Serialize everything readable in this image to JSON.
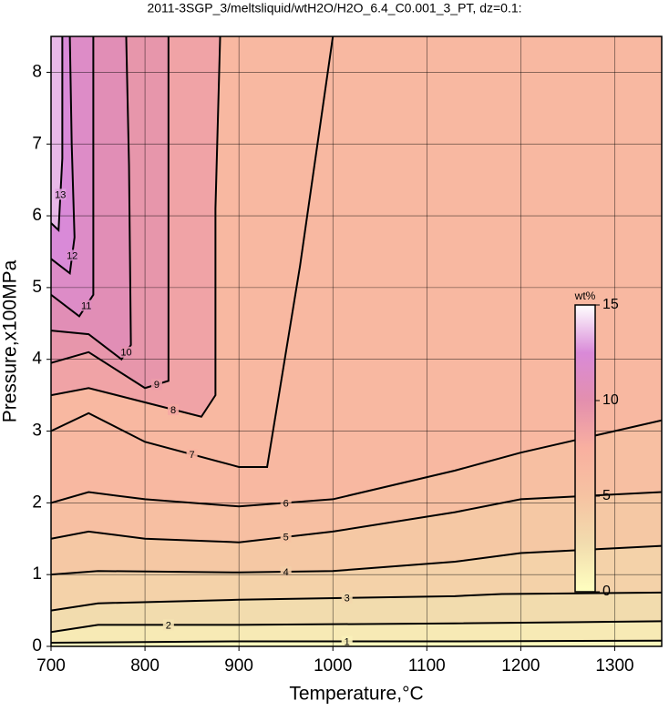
{
  "chart_data": {
    "type": "contour",
    "title": "2011-3SGP_3/meltsliquid/wtH2O/H2O_6.4_C0.001_3_PT, dz=0.1:",
    "xlabel": "Temperature,°C",
    "ylabel": "Pressure,x100MPa",
    "xlim": [
      700,
      1350
    ],
    "xticks": [
      700,
      800,
      900,
      1000,
      1100,
      1200,
      1300
    ],
    "ylim": [
      0,
      8.5
    ],
    "yticks": [
      0,
      1,
      2,
      3,
      4,
      5,
      6,
      7,
      8
    ],
    "grid": true,
    "line_color": "#000000",
    "contours": [
      {
        "level": 1,
        "x": [
          700,
          900,
          1130,
          1350
        ],
        "y": [
          0.05,
          0.07,
          0.07,
          0.08
        ]
      },
      {
        "level": 2,
        "x": [
          700,
          750,
          900,
          1130,
          1350
        ],
        "y": [
          0.2,
          0.3,
          0.3,
          0.32,
          0.35
        ]
      },
      {
        "level": 3,
        "x": [
          700,
          750,
          900,
          1130,
          1180,
          1350
        ],
        "y": [
          0.5,
          0.6,
          0.65,
          0.7,
          0.73,
          0.75
        ]
      },
      {
        "level": 4,
        "x": [
          700,
          750,
          900,
          1000,
          1130,
          1200,
          1350
        ],
        "y": [
          1.0,
          1.05,
          1.03,
          1.05,
          1.18,
          1.3,
          1.4
        ]
      },
      {
        "level": 5,
        "x": [
          700,
          740,
          800,
          900,
          1000,
          1130,
          1200,
          1350
        ],
        "y": [
          1.5,
          1.6,
          1.5,
          1.45,
          1.6,
          1.87,
          2.05,
          2.15
        ]
      },
      {
        "level": 6,
        "x": [
          700,
          740,
          800,
          900,
          1000,
          1130,
          1200,
          1300,
          1350
        ],
        "y": [
          2.0,
          2.15,
          2.05,
          1.95,
          2.05,
          2.45,
          2.7,
          3.0,
          3.15
        ]
      },
      {
        "level": 7,
        "x": [
          700,
          740,
          800,
          900,
          930,
          965,
          1000
        ],
        "y": [
          3.0,
          3.25,
          2.85,
          2.5,
          2.5,
          5.3,
          8.5
        ]
      },
      {
        "level": 8,
        "x": [
          700,
          740,
          800,
          860,
          875,
          875,
          880
        ],
        "y": [
          3.5,
          3.6,
          3.4,
          3.2,
          3.5,
          6.1,
          8.5
        ]
      },
      {
        "level": 9,
        "x": [
          700,
          740,
          800,
          825,
          825,
          825
        ],
        "y": [
          3.95,
          4.1,
          3.6,
          3.7,
          6.3,
          8.5
        ]
      },
      {
        "level": 10,
        "x": [
          700,
          740,
          775,
          785,
          783,
          780
        ],
        "y": [
          4.4,
          4.35,
          4.0,
          4.2,
          6.7,
          8.5
        ]
      },
      {
        "level": 11,
        "x": [
          700,
          730,
          745,
          745,
          745
        ],
        "y": [
          4.9,
          4.6,
          4.9,
          7.3,
          8.5
        ]
      },
      {
        "level": 12,
        "x": [
          700,
          720,
          725,
          722,
          720
        ],
        "y": [
          5.4,
          5.2,
          5.7,
          7.0,
          8.5
        ]
      },
      {
        "level": 13,
        "x": [
          700,
          708,
          712,
          712
        ],
        "y": [
          5.9,
          5.8,
          6.8,
          8.5
        ]
      }
    ],
    "colorbar": {
      "label": "wt%",
      "lim": [
        0,
        15
      ],
      "ticks": [
        0,
        5,
        10,
        15
      ],
      "colors": [
        "#ffffc0",
        "#f2dcae",
        "#f6c3a2",
        "#f9b0a0",
        "#e38fae",
        "#d98ad8",
        "#ffffff"
      ]
    }
  }
}
